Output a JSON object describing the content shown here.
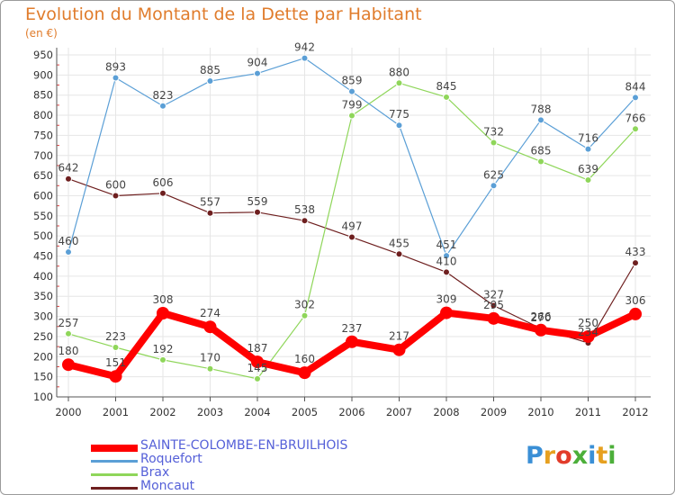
{
  "title": "Evolution du Montant de la Dette par Habitant",
  "unit_label": "(en €)",
  "logo": {
    "letters": [
      "P",
      "r",
      "o",
      "x",
      "i",
      "t",
      "i"
    ],
    "colors": [
      "#3a8fd6",
      "#e6a020",
      "#e23c2a",
      "#4caf3a",
      "#3a8fd6",
      "#e6a020",
      "#4caf3a"
    ]
  },
  "chart_data": {
    "type": "line",
    "x": [
      "2000",
      "2001",
      "2002",
      "2003",
      "2004",
      "2005",
      "2006",
      "2007",
      "2008",
      "2009",
      "2010",
      "2011",
      "2012"
    ],
    "yticks": [
      100,
      150,
      200,
      250,
      300,
      350,
      400,
      450,
      500,
      550,
      600,
      650,
      700,
      750,
      800,
      850,
      900,
      950
    ],
    "ylim": [
      100,
      950
    ],
    "grid": true,
    "series": [
      {
        "name": "Moncaut",
        "color": "#6e1f1f",
        "width": 1.2,
        "marker": 3.5,
        "values": [
          642,
          600,
          606,
          557,
          559,
          538,
          497,
          455,
          410,
          327,
          270,
          234,
          433
        ],
        "labels": [
          "642",
          "600",
          "606",
          "557",
          "559",
          "538",
          "497",
          "455",
          "410",
          "327",
          "270",
          "234",
          "433"
        ]
      },
      {
        "name": "Brax",
        "color": "#8fd65a",
        "width": 1.2,
        "marker": 3.5,
        "values": [
          257,
          223,
          192,
          170,
          145,
          302,
          799,
          880,
          845,
          732,
          685,
          639,
          766
        ],
        "labels": [
          "257",
          "223",
          "192",
          "170",
          "145",
          "302",
          "799",
          "880",
          "845",
          "732",
          "685",
          "639",
          "766"
        ]
      },
      {
        "name": "Roquefort",
        "color": "#5b9fd6",
        "width": 1.2,
        "marker": 3.5,
        "values": [
          460,
          893,
          823,
          885,
          904,
          942,
          859,
          775,
          451,
          625,
          788,
          716,
          844
        ],
        "labels": [
          "460",
          "893",
          "823",
          "885",
          "904",
          "942",
          "859",
          "775",
          "451",
          "625",
          "788",
          "716",
          "844"
        ]
      },
      {
        "name": "SAINTE-COLOMBE-EN-BRUILHOIS",
        "color": "#ff0000",
        "width": 8,
        "marker": 7,
        "values": [
          180,
          151,
          308,
          274,
          187,
          160,
          237,
          217,
          309,
          295,
          266,
          250,
          306
        ],
        "labels": [
          "180",
          "151",
          "308",
          "274",
          "187",
          "160",
          "237",
          "217",
          "309",
          "295",
          "266",
          "250",
          "306"
        ]
      }
    ],
    "legend": [
      {
        "name": "SAINTE-COLOMBE-EN-BRUILHOIS",
        "color": "#ff0000"
      },
      {
        "name": "Roquefort",
        "color": "#5b9fd6"
      },
      {
        "name": "Brax",
        "color": "#8fd65a"
      },
      {
        "name": "Moncaut",
        "color": "#6e1f1f"
      }
    ],
    "legend_position": "bottom-left"
  }
}
